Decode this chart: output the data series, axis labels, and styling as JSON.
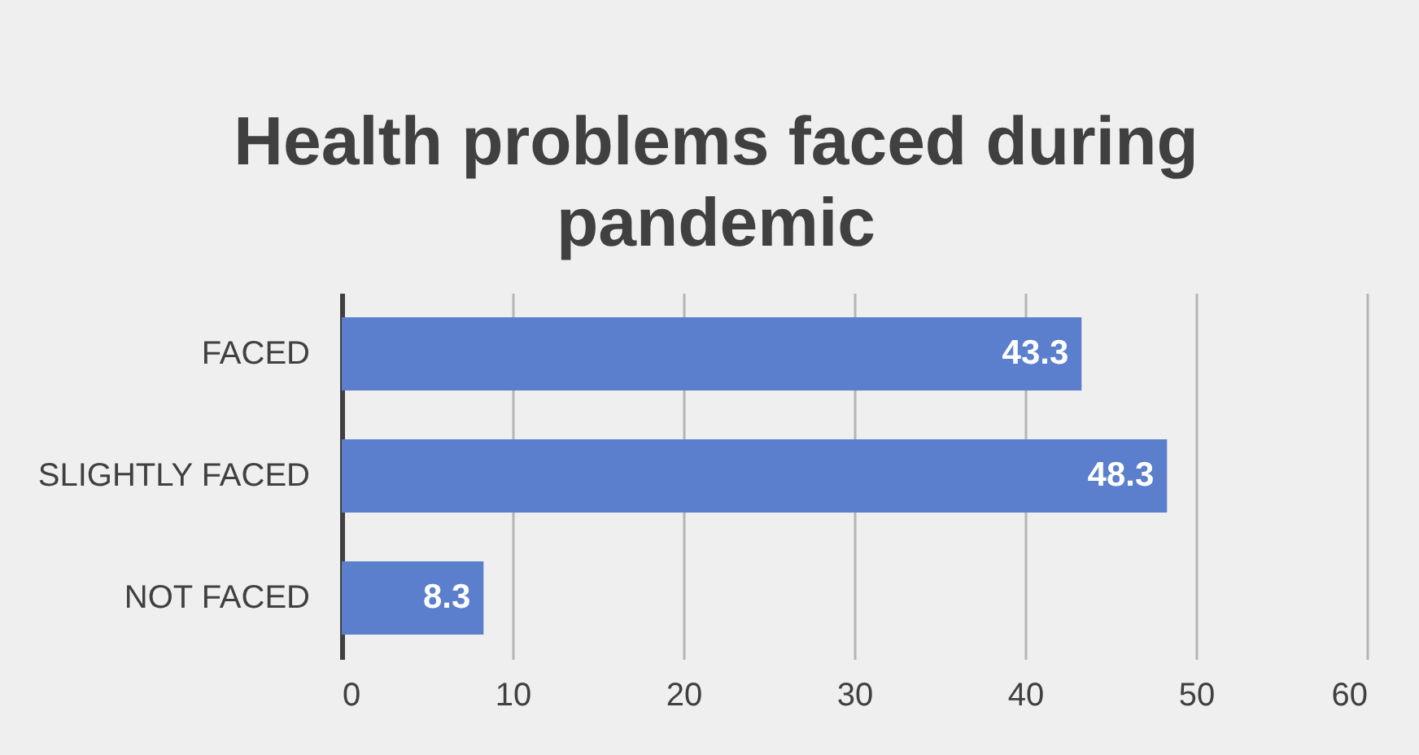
{
  "chart_data": {
    "type": "bar",
    "orientation": "horizontal",
    "title": "Health problems  faced during pandemic",
    "categories": [
      "FACED",
      "SLIGHTLY FACED",
      "NOT FACED"
    ],
    "values": [
      43.3,
      48.3,
      8.3
    ],
    "color": "#5b7fcc",
    "xlim": [
      0,
      60
    ],
    "xticks": [
      0,
      10,
      20,
      30,
      40,
      50,
      60
    ],
    "grid": "x",
    "data_labels": true
  }
}
